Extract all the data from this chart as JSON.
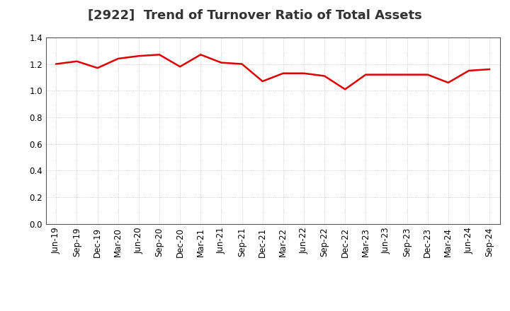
{
  "title": "[2922]  Trend of Turnover Ratio of Total Assets",
  "x_labels": [
    "Jun-19",
    "Sep-19",
    "Dec-19",
    "Mar-20",
    "Jun-20",
    "Sep-20",
    "Dec-20",
    "Mar-21",
    "Jun-21",
    "Sep-21",
    "Dec-21",
    "Mar-22",
    "Jun-22",
    "Sep-22",
    "Dec-22",
    "Mar-23",
    "Jun-23",
    "Sep-23",
    "Dec-23",
    "Mar-24",
    "Jun-24",
    "Sep-24"
  ],
  "y_values": [
    1.2,
    1.22,
    1.17,
    1.24,
    1.26,
    1.27,
    1.18,
    1.27,
    1.21,
    1.2,
    1.07,
    1.13,
    1.13,
    1.11,
    1.01,
    1.12,
    1.12,
    1.12,
    1.12,
    1.06,
    1.15,
    1.16
  ],
  "line_color": "#dd0000",
  "line_width": 1.8,
  "ylim": [
    0.0,
    1.4
  ],
  "yticks": [
    0.0,
    0.2,
    0.4,
    0.6,
    0.8,
    1.0,
    1.2,
    1.4
  ],
  "grid_color": "#aaaaaa",
  "bg_color": "#ffffff",
  "title_fontsize": 13,
  "tick_fontsize": 8.5,
  "title_color": "#333333"
}
